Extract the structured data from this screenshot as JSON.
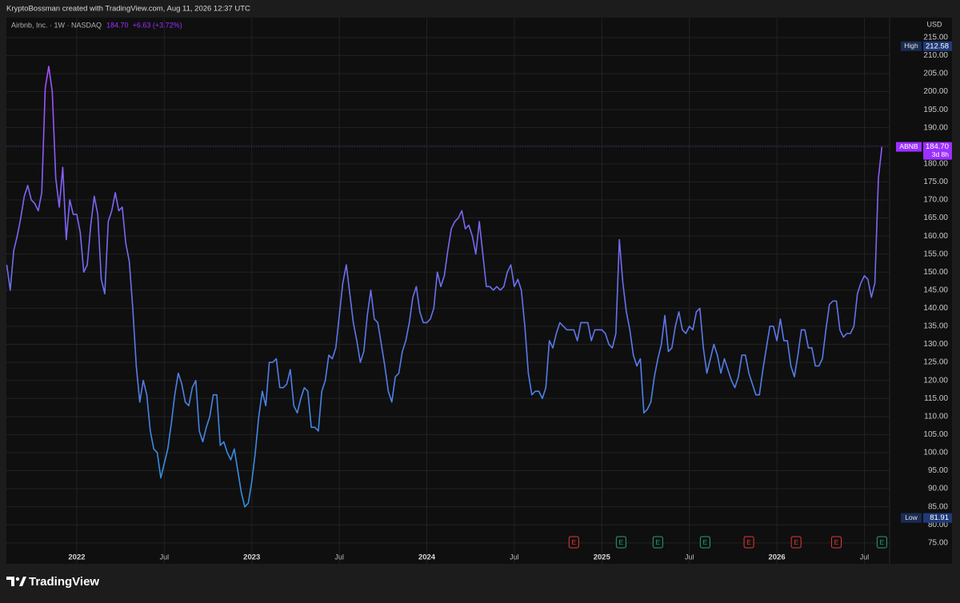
{
  "chart_data": {
    "type": "line",
    "credit": "KryptoBossman created with TradingView.com, Aug 11, 2026 12:37 UTC",
    "brand": "TradingView",
    "currency": "USD",
    "change": "+6.63 (+3.72%)",
    "last": {
      "value": 184.7,
      "label": "184.70",
      "ticker": "ABNB",
      "countdown": "3d 8h",
      "color": "#9b30ff"
    },
    "high": {
      "name": "High",
      "value": 212.58
    },
    "low": {
      "name": "Low",
      "value": 81.91
    },
    "grid": true,
    "xlim": [
      2021.598,
      2026.644
    ],
    "ylim": [
      69.2,
      220.5
    ],
    "xticks": [
      2022,
      {
        "value": 2022.5,
        "label": "Jul"
      },
      2023,
      {
        "value": 2023.5,
        "label": "Jul"
      },
      2024,
      {
        "value": 2024.5,
        "label": "Jul"
      },
      2025,
      {
        "value": 2025.5,
        "label": "Jul"
      },
      2026,
      {
        "value": 2026.5,
        "label": "Jul"
      }
    ],
    "yticks": [
      {
        "value": 75,
        "label": "75.00"
      },
      {
        "value": 80,
        "label": "80.00"
      },
      {
        "value": 85,
        "label": "85.00"
      },
      {
        "value": 90,
        "label": "90.00"
      },
      {
        "value": 95,
        "label": "95.00"
      },
      {
        "value": 100,
        "label": "100.00"
      },
      {
        "value": 105,
        "label": "105.00"
      },
      {
        "value": 110,
        "label": "110.00"
      },
      {
        "value": 115,
        "label": "115.00"
      },
      {
        "value": 120,
        "label": "120.00"
      },
      {
        "value": 125,
        "label": "125.00"
      },
      {
        "value": 130,
        "label": "130.00"
      },
      {
        "value": 135,
        "label": "135.00"
      },
      {
        "value": 140,
        "label": "140.00"
      },
      {
        "value": 145,
        "label": "145.00"
      },
      {
        "value": 150,
        "label": "150.00"
      },
      {
        "value": 155,
        "label": "155.00"
      },
      {
        "value": 160,
        "label": "160.00"
      },
      {
        "value": 165,
        "label": "165.00"
      },
      {
        "value": 170,
        "label": "170.00"
      },
      {
        "value": 175,
        "label": "175.00"
      },
      {
        "value": 180,
        "label": "180.00"
      },
      {
        "value": 185,
        "label": "185.00"
      },
      {
        "value": 190,
        "label": "190.00"
      },
      {
        "value": 195,
        "label": "195.00"
      },
      {
        "value": 200,
        "label": "200.00"
      },
      {
        "value": 205,
        "label": "205.00"
      },
      {
        "value": 210,
        "label": "210.00"
      },
      {
        "value": 215,
        "label": "215.00"
      }
    ],
    "earnings": [
      {
        "x": 2024.84,
        "label": "E",
        "color": "#e03a3a"
      },
      {
        "x": 2025.11,
        "label": "E",
        "color": "#22a37a"
      },
      {
        "x": 2025.32,
        "label": "E",
        "color": "#22a37a"
      },
      {
        "x": 2025.59,
        "label": "E",
        "color": "#22a37a"
      },
      {
        "x": 2025.84,
        "label": "E",
        "color": "#e03a3a"
      },
      {
        "x": 2026.11,
        "label": "E",
        "color": "#e03a3a"
      },
      {
        "x": 2026.34,
        "label": "E",
        "color": "#e03a3a"
      },
      {
        "x": 2026.6,
        "label": "E",
        "color": "#22a37a"
      }
    ],
    "x": [
      2021.6,
      2021.62,
      2021.64,
      2021.66,
      2021.68,
      2021.7,
      2021.72,
      2021.74,
      2021.76,
      2021.78,
      2021.8,
      2021.82,
      2021.84,
      2021.86,
      2021.88,
      2021.9,
      2021.92,
      2021.94,
      2021.96,
      2021.98,
      2022,
      2022.02,
      2022.04,
      2022.06,
      2022.08,
      2022.1,
      2022.12,
      2022.14,
      2022.16,
      2022.18,
      2022.2,
      2022.22,
      2022.24,
      2022.26,
      2022.28,
      2022.3,
      2022.32,
      2022.34,
      2022.36,
      2022.38,
      2022.4,
      2022.42,
      2022.44,
      2022.46,
      2022.48,
      2022.5,
      2022.52,
      2022.54,
      2022.56,
      2022.58,
      2022.6,
      2022.62,
      2022.64,
      2022.66,
      2022.68,
      2022.7,
      2022.72,
      2022.74,
      2022.76,
      2022.78,
      2022.8,
      2022.82,
      2022.84,
      2022.86,
      2022.88,
      2022.9,
      2022.92,
      2022.94,
      2022.96,
      2022.98,
      2023,
      2023.02,
      2023.04,
      2023.06,
      2023.08,
      2023.1,
      2023.12,
      2023.14,
      2023.16,
      2023.18,
      2023.2,
      2023.22,
      2023.24,
      2023.26,
      2023.28,
      2023.3,
      2023.32,
      2023.34,
      2023.36,
      2023.38,
      2023.4,
      2023.42,
      2023.44,
      2023.46,
      2023.48,
      2023.5,
      2023.52,
      2023.54,
      2023.56,
      2023.58,
      2023.6,
      2023.62,
      2023.64,
      2023.66,
      2023.68,
      2023.7,
      2023.72,
      2023.74,
      2023.76,
      2023.78,
      2023.8,
      2023.82,
      2023.84,
      2023.86,
      2023.88,
      2023.9,
      2023.92,
      2023.94,
      2023.96,
      2023.98,
      2024,
      2024.02,
      2024.04,
      2024.06,
      2024.08,
      2024.1,
      2024.12,
      2024.14,
      2024.16,
      2024.18,
      2024.2,
      2024.22,
      2024.24,
      2024.26,
      2024.28,
      2024.3,
      2024.32,
      2024.34,
      2024.36,
      2024.38,
      2024.4,
      2024.42,
      2024.44,
      2024.46,
      2024.48,
      2024.5,
      2024.52,
      2024.54,
      2024.56,
      2024.58,
      2024.6,
      2024.62,
      2024.64,
      2024.66,
      2024.68,
      2024.7,
      2024.72,
      2024.74,
      2024.76,
      2024.78,
      2024.8,
      2024.82,
      2024.84,
      2024.86,
      2024.88,
      2024.9,
      2024.92,
      2024.94,
      2024.96,
      2024.98,
      2025,
      2025.02,
      2025.04,
      2025.06,
      2025.08,
      2025.1,
      2025.12,
      2025.14,
      2025.16,
      2025.18,
      2025.2,
      2025.22,
      2025.24,
      2025.26,
      2025.28,
      2025.3,
      2025.32,
      2025.34,
      2025.36,
      2025.38,
      2025.4,
      2025.42,
      2025.44,
      2025.46,
      2025.48,
      2025.5,
      2025.52,
      2025.54,
      2025.56,
      2025.58,
      2025.6,
      2025.62,
      2025.64,
      2025.66,
      2025.68,
      2025.7,
      2025.72,
      2025.74,
      2025.76,
      2025.78,
      2025.8,
      2025.82,
      2025.84,
      2025.86,
      2025.88,
      2025.9,
      2025.92,
      2025.94,
      2025.96,
      2025.98,
      2026,
      2026.02,
      2026.04,
      2026.06,
      2026.08,
      2026.1,
      2026.12,
      2026.14,
      2026.16,
      2026.18,
      2026.2,
      2026.22,
      2026.24,
      2026.26,
      2026.28,
      2026.3,
      2026.32,
      2026.34,
      2026.36,
      2026.38,
      2026.4,
      2026.42,
      2026.44,
      2026.46,
      2026.48,
      2026.5,
      2026.52,
      2026.54,
      2026.56,
      2026.58,
      2026.6
    ],
    "series": [
      {
        "name": "Airbnb, Inc. · 1W · NASDAQ",
        "colors": [
          "#a64dff",
          "#2c93dc"
        ],
        "values": [
          152,
          145,
          156,
          160,
          165,
          171,
          174,
          170,
          169,
          167,
          172,
          201,
          207,
          200,
          176,
          168,
          179,
          159,
          170,
          166,
          166,
          161,
          150,
          152,
          163,
          171,
          166,
          148,
          144,
          164,
          167,
          172,
          167,
          168,
          158,
          153,
          140,
          124,
          114,
          120,
          116,
          106,
          101,
          100,
          93,
          97,
          101,
          108,
          116,
          122,
          119,
          114,
          113,
          118,
          120,
          106,
          103,
          107,
          110,
          116,
          116,
          102,
          103,
          100,
          98,
          101,
          95,
          89,
          85,
          86,
          92,
          100,
          110,
          117,
          113,
          125,
          125,
          126,
          118,
          118,
          119,
          123,
          113,
          111,
          115,
          118,
          117,
          107,
          107,
          106,
          117,
          120,
          127,
          126,
          129,
          138,
          147,
          152,
          144,
          136,
          131,
          125,
          128,
          138,
          145,
          137,
          136,
          130,
          124,
          117,
          114,
          121,
          122,
          128,
          131,
          136,
          143,
          146,
          139,
          136,
          136,
          137,
          140,
          150,
          146,
          149,
          156,
          162,
          164,
          165,
          167,
          162,
          163,
          160,
          155,
          164,
          155,
          146,
          146,
          145,
          146,
          145,
          146,
          150,
          152,
          146,
          148,
          145,
          135,
          122,
          116,
          117,
          117,
          115,
          118,
          131,
          129,
          133,
          136,
          135,
          134,
          134,
          134,
          131,
          136,
          136,
          136,
          131,
          134,
          134,
          134,
          133,
          130,
          129,
          133,
          159,
          147,
          139,
          134,
          127,
          124,
          126,
          111,
          112,
          114,
          121,
          126,
          130,
          138,
          128,
          129,
          135,
          139,
          134,
          133,
          135,
          134,
          139,
          140,
          129,
          122,
          126,
          130,
          127,
          122,
          126,
          123,
          120,
          118,
          121,
          127,
          127,
          122,
          119,
          116,
          116,
          123,
          129,
          135,
          135,
          131,
          137,
          131,
          131,
          124,
          121,
          127,
          134,
          134,
          129,
          129,
          124,
          124,
          126,
          134,
          141,
          142,
          142,
          134,
          132,
          133,
          133,
          135,
          144,
          147,
          149,
          148,
          143,
          147,
          176,
          184.7
        ]
      }
    ]
  }
}
